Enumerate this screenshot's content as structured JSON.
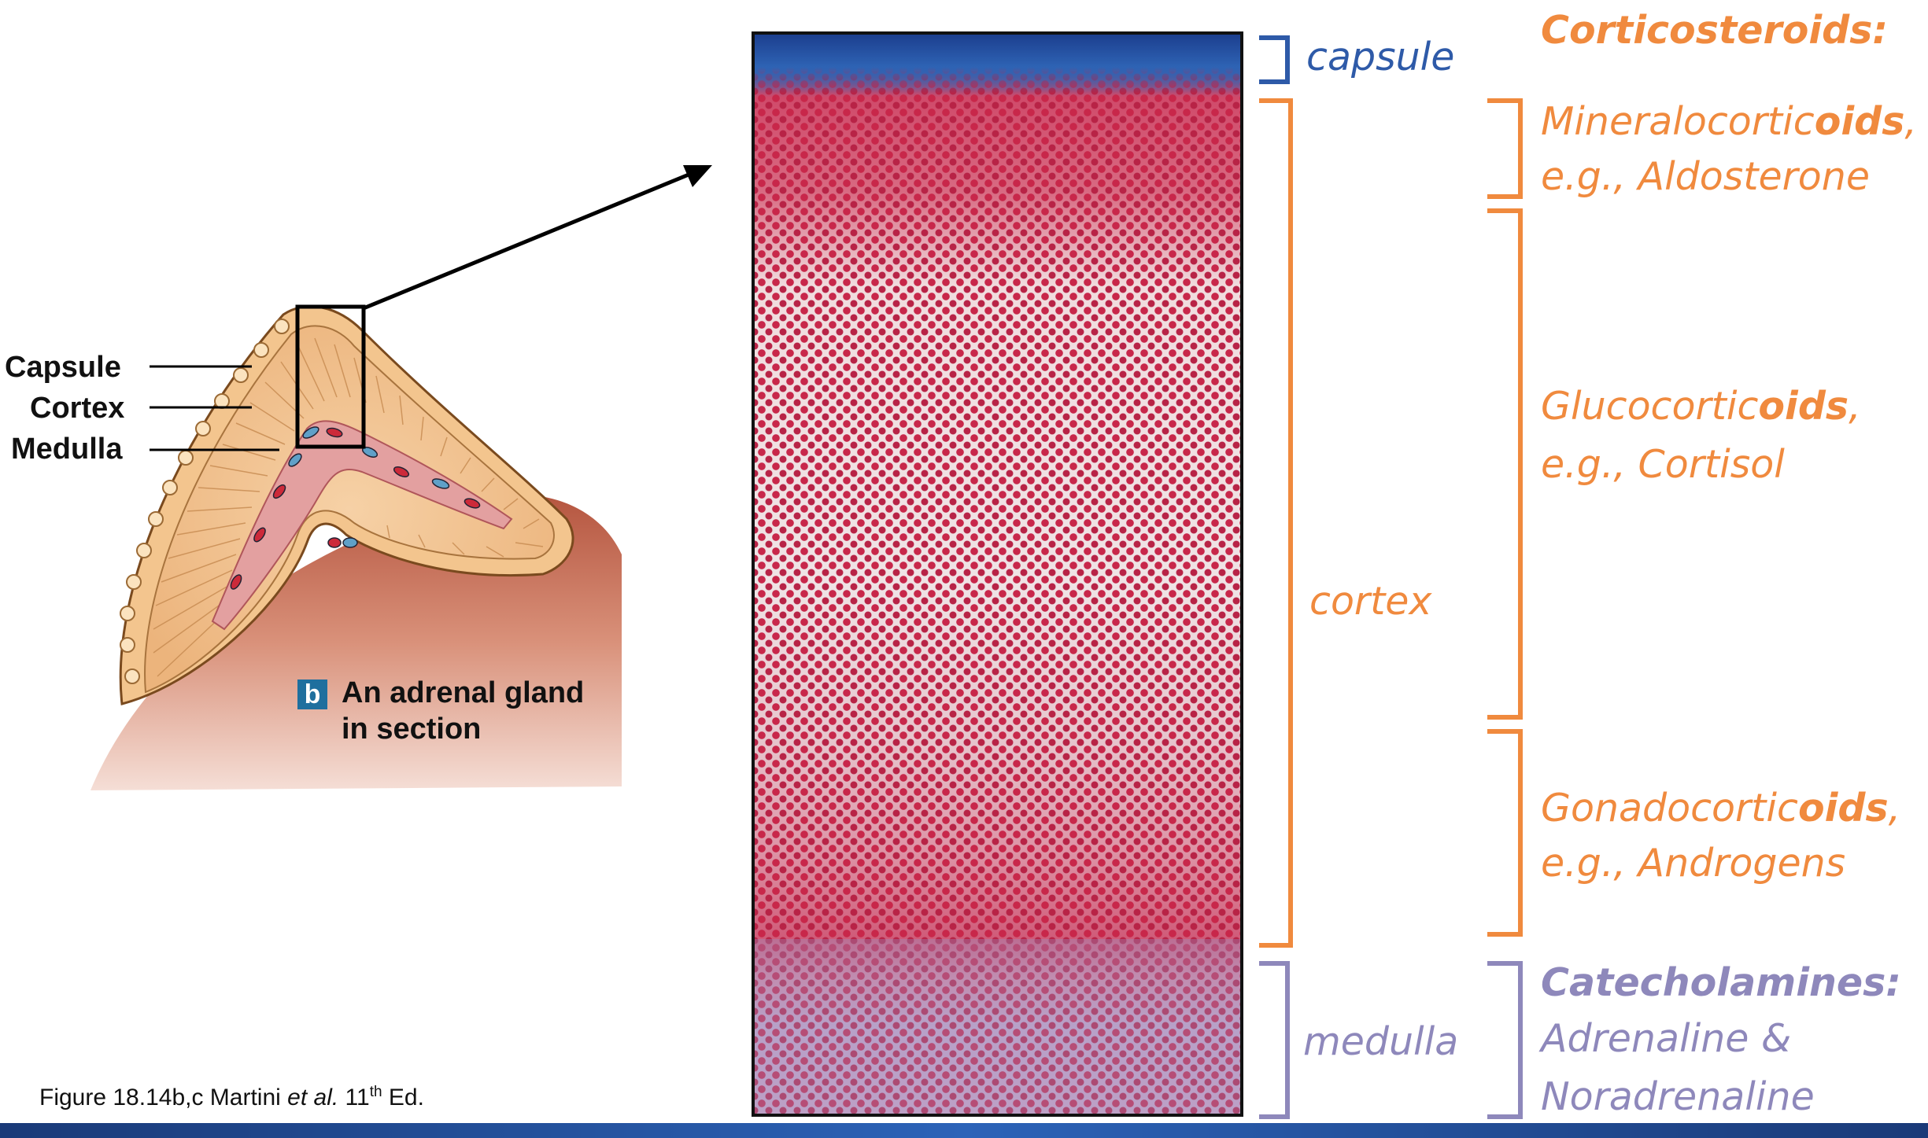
{
  "gland_labels": {
    "capsule": "Capsule",
    "cortex": "Cortex",
    "medulla": "Medulla"
  },
  "panel": {
    "letter": "b",
    "line1": "An adrenal gland",
    "line2": "in section"
  },
  "caption": {
    "prefix": "Figure 18.14b,c Martini ",
    "etal": "et al.",
    "num": " 11",
    "sup": "th",
    "suffix": " Ed."
  },
  "zones": {
    "capsule": "capsule",
    "cortex": "cortex",
    "medulla": "medulla"
  },
  "hormones": {
    "corticosteroids": "Corticosteroids:",
    "mineralo": {
      "pre": "Mineralocortic",
      "bold": "oids",
      "post": ",",
      "example": "e.g., Aldosterone"
    },
    "gluco": {
      "pre": "Glucocortic",
      "bold": "oids",
      "post": ",",
      "example": "e.g., Cortisol"
    },
    "gonado": {
      "pre": "Gonadocortic",
      "bold": "oids",
      "post": ",",
      "example": "e.g., Androgens"
    },
    "catecholamines": "Catecholamines:",
    "cat_line1": "Adrenaline &",
    "cat_line2": "Noradrenaline"
  },
  "colors": {
    "capsule_blue": "#2e5aa8",
    "cortex_orange": "#f08a3e",
    "medulla_purple": "#8e88bb",
    "stain_red": "#c8274a"
  }
}
